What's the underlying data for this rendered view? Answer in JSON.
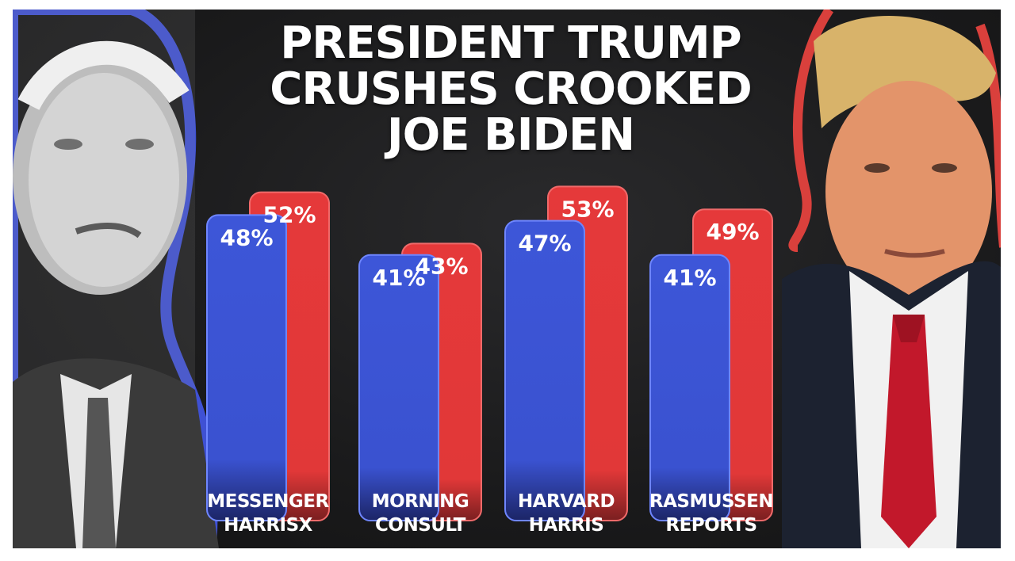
{
  "title_lines": [
    "PRESIDENT TRUMP",
    "CRUSHES CROOKED",
    "JOE BIDEN"
  ],
  "colors": {
    "biden_bar": "#3d56d8",
    "trump_bar": "#e5393a",
    "outline_blue": "#3f51d4",
    "outline_red": "#d9403c",
    "background": "#1c1c1d"
  },
  "chart_data": {
    "type": "bar",
    "categories": [
      "MESSENGER\nHARRISX",
      "MORNING\nCONSULT",
      "HARVARD\nHARRIS",
      "RASMUSSEN\nREPORTS"
    ],
    "series": [
      {
        "values": [
          48,
          41,
          47,
          41
        ],
        "labels": [
          "48%",
          "41%",
          "47%",
          "41%"
        ],
        "color": "#3d56d8"
      },
      {
        "values": [
          52,
          43,
          53,
          49
        ],
        "labels": [
          "52%",
          "43%",
          "53%",
          "49%"
        ],
        "color": "#e5393a"
      }
    ],
    "title": "PRESIDENT TRUMP CRUSHES CROOKED JOE BIDEN",
    "xlabel": "",
    "ylabel": "",
    "grid": false,
    "legend": "none"
  }
}
